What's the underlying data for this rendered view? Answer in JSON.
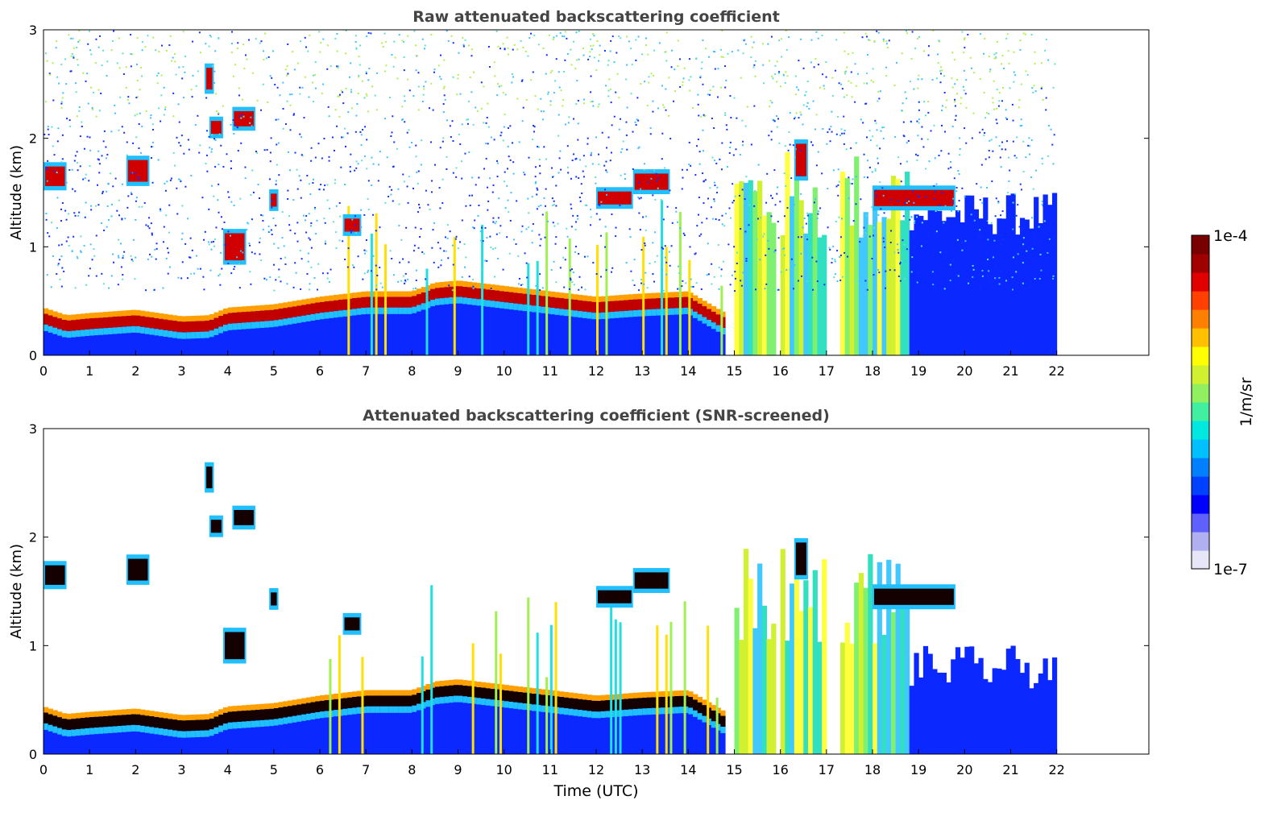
{
  "chart_data": [
    {
      "type": "heatmap",
      "title": "Raw attenuated backscattering coefficient",
      "xlabel": "",
      "ylabel": "Altitude (km)",
      "xlim": [
        0,
        24
      ],
      "ylim": [
        0,
        3
      ],
      "x_ticks": [
        "0",
        "1",
        "2",
        "3",
        "4",
        "5",
        "6",
        "7",
        "8",
        "9",
        "10",
        "11",
        "12",
        "13",
        "14",
        "15",
        "16",
        "17",
        "18",
        "19",
        "20",
        "21",
        "22"
      ],
      "y_ticks": [
        "0",
        "1",
        "2",
        "3"
      ],
      "data_end_time": 22,
      "screened": false,
      "features": {
        "boundary_layer_top_km": [
          [
            0,
            0.35
          ],
          [
            0.5,
            0.28
          ],
          [
            1,
            0.3
          ],
          [
            2,
            0.33
          ],
          [
            3,
            0.27
          ],
          [
            3.6,
            0.28
          ],
          [
            4,
            0.35
          ],
          [
            5,
            0.38
          ],
          [
            6,
            0.45
          ],
          [
            7,
            0.5
          ],
          [
            8,
            0.5
          ],
          [
            8.5,
            0.58
          ],
          [
            9,
            0.6
          ],
          [
            10,
            0.55
          ],
          [
            11,
            0.5
          ],
          [
            12,
            0.45
          ],
          [
            13,
            0.48
          ],
          [
            14,
            0.5
          ],
          [
            14.8,
            0.3
          ]
        ],
        "elevated_layers": [
          {
            "t0": 0.0,
            "t1": 0.5,
            "z": 1.65,
            "thickness": 0.18
          },
          {
            "t0": 1.8,
            "t1": 2.3,
            "z": 1.7,
            "thickness": 0.2
          },
          {
            "t0": 3.5,
            "t1": 3.7,
            "z": 2.55,
            "thickness": 0.2
          },
          {
            "t0": 3.6,
            "t1": 3.9,
            "z": 2.1,
            "thickness": 0.12
          },
          {
            "t0": 4.1,
            "t1": 4.6,
            "z": 2.18,
            "thickness": 0.14
          },
          {
            "t0": 3.9,
            "t1": 4.4,
            "z": 1.0,
            "thickness": 0.25
          },
          {
            "t0": 4.9,
            "t1": 5.1,
            "z": 1.43,
            "thickness": 0.12
          },
          {
            "t0": 6.5,
            "t1": 6.9,
            "z": 1.2,
            "thickness": 0.12
          },
          {
            "t0": 12.0,
            "t1": 12.8,
            "z": 1.45,
            "thickness": 0.12
          },
          {
            "t0": 12.8,
            "t1": 13.6,
            "z": 1.6,
            "thickness": 0.15
          },
          {
            "t0": 16.3,
            "t1": 16.6,
            "z": 1.8,
            "thickness": 0.3
          },
          {
            "t0": 18.0,
            "t1": 19.8,
            "z": 1.45,
            "thickness": 0.15
          }
        ],
        "precipitation_intervals": [
          [
            15.0,
            15.9
          ],
          [
            16.0,
            17.0
          ],
          [
            17.3,
            18.8
          ]
        ]
      }
    },
    {
      "type": "heatmap",
      "title": "Attenuated backscattering coefficient (SNR-screened)",
      "xlabel": "Time (UTC)",
      "ylabel": "Altitude (km)",
      "xlim": [
        0,
        24
      ],
      "ylim": [
        0,
        3
      ],
      "x_ticks": [
        "0",
        "1",
        "2",
        "3",
        "4",
        "5",
        "6",
        "7",
        "8",
        "9",
        "10",
        "11",
        "12",
        "13",
        "14",
        "15",
        "16",
        "17",
        "18",
        "19",
        "20",
        "21",
        "22"
      ],
      "y_ticks": [
        "0",
        "1",
        "2",
        "3"
      ],
      "data_end_time": 22,
      "screened": true
    }
  ],
  "colorbar": {
    "label": "1/m/sr",
    "max_label": "1e-4",
    "min_label": "1e-7",
    "colors": [
      "#e6e6f8",
      "#b0b0f0",
      "#6060ff",
      "#0000ff",
      "#0040ff",
      "#0080ff",
      "#00c0ff",
      "#00e8e0",
      "#40f0a0",
      "#90f060",
      "#d0f030",
      "#ffff00",
      "#ffc000",
      "#ff8000",
      "#ff4000",
      "#e00000",
      "#a00000",
      "#780000"
    ]
  }
}
